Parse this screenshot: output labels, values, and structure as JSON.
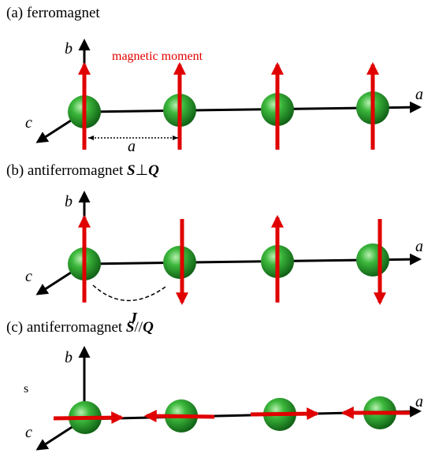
{
  "panels": [
    {
      "title": "(a) ferromagnet",
      "b_axis": "b",
      "a_axis": "a",
      "c_axis": "c",
      "moment_label": "magnetic moment",
      "spacing_label": "a"
    },
    {
      "title": "(b) antiferromagnet ",
      "title_s": "S",
      "title_sym": "⊥",
      "title_q": "Q",
      "b_axis": "b",
      "a_axis": "a",
      "c_axis": "c",
      "coupling_label": "J"
    },
    {
      "title": "(c) antiferromagnet ",
      "title_s": "S",
      "title_sym": "//",
      "title_q": "Q",
      "b_axis": "b",
      "a_axis": "a",
      "c_axis": "c",
      "side_text": "s"
    }
  ]
}
